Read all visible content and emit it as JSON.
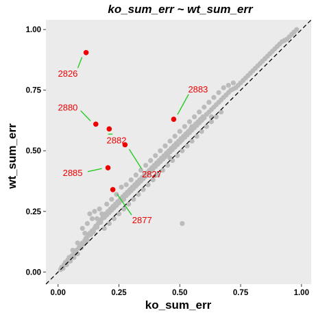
{
  "chart_data": {
    "type": "scatter",
    "title": "ko_sum_err ~ wt_sum_err",
    "xlabel": "ko_sum_err",
    "ylabel": "wt_sum_err",
    "xlim": [
      -0.05,
      1.04
    ],
    "ylim": [
      -0.05,
      1.04
    ],
    "xticks": [
      0.0,
      0.25,
      0.5,
      0.75,
      1.0
    ],
    "yticks": [
      0.0,
      0.25,
      0.5,
      0.75,
      1.0
    ],
    "xtick_labels": [
      "0.00",
      "0.25",
      "0.50",
      "0.75",
      "1.00"
    ],
    "ytick_labels": [
      "0.00",
      "0.25",
      "0.50",
      "0.75",
      "1.00"
    ],
    "reference_line": {
      "slope": 1,
      "intercept": 0,
      "style": "dashed",
      "color": "#000000"
    },
    "grid": false,
    "legend": "none",
    "colors": {
      "background": "#ffffff",
      "panel": "#ebebeb",
      "bulk_points": "#bbbbbb",
      "highlight_points": "#ee0000",
      "annotation_text": "#ee0000",
      "leader_lines": "#22cc22"
    },
    "bulk_series": {
      "points": [
        [
          0.01,
          0.01
        ],
        [
          0.015,
          0.02
        ],
        [
          0.02,
          0.015
        ],
        [
          0.025,
          0.03
        ],
        [
          0.03,
          0.04
        ],
        [
          0.035,
          0.03
        ],
        [
          0.04,
          0.05
        ],
        [
          0.045,
          0.06
        ],
        [
          0.05,
          0.045
        ],
        [
          0.055,
          0.065
        ],
        [
          0.06,
          0.07
        ],
        [
          0.065,
          0.06
        ],
        [
          0.07,
          0.08
        ],
        [
          0.075,
          0.09
        ],
        [
          0.08,
          0.075
        ],
        [
          0.085,
          0.1
        ],
        [
          0.09,
          0.11
        ],
        [
          0.095,
          0.1
        ],
        [
          0.1,
          0.12
        ],
        [
          0.105,
          0.115
        ],
        [
          0.11,
          0.13
        ],
        [
          0.115,
          0.14
        ],
        [
          0.12,
          0.13
        ],
        [
          0.125,
          0.15
        ],
        [
          0.13,
          0.16
        ],
        [
          0.135,
          0.155
        ],
        [
          0.14,
          0.17
        ],
        [
          0.145,
          0.165
        ],
        [
          0.15,
          0.18
        ],
        [
          0.155,
          0.19
        ],
        [
          0.16,
          0.185
        ],
        [
          0.165,
          0.2
        ],
        [
          0.17,
          0.21
        ],
        [
          0.175,
          0.205
        ],
        [
          0.18,
          0.22
        ],
        [
          0.185,
          0.23
        ],
        [
          0.19,
          0.225
        ],
        [
          0.195,
          0.24
        ],
        [
          0.2,
          0.235
        ],
        [
          0.205,
          0.25
        ],
        [
          0.21,
          0.245
        ],
        [
          0.215,
          0.26
        ],
        [
          0.22,
          0.255
        ],
        [
          0.225,
          0.27
        ],
        [
          0.23,
          0.265
        ],
        [
          0.235,
          0.28
        ],
        [
          0.24,
          0.275
        ],
        [
          0.245,
          0.29
        ],
        [
          0.25,
          0.285
        ],
        [
          0.255,
          0.3
        ],
        [
          0.26,
          0.295
        ],
        [
          0.265,
          0.31
        ],
        [
          0.27,
          0.3
        ],
        [
          0.275,
          0.32
        ],
        [
          0.28,
          0.315
        ],
        [
          0.285,
          0.33
        ],
        [
          0.29,
          0.325
        ],
        [
          0.295,
          0.34
        ],
        [
          0.3,
          0.335
        ],
        [
          0.305,
          0.35
        ],
        [
          0.31,
          0.345
        ],
        [
          0.315,
          0.36
        ],
        [
          0.32,
          0.355
        ],
        [
          0.325,
          0.37
        ],
        [
          0.33,
          0.365
        ],
        [
          0.335,
          0.38
        ],
        [
          0.34,
          0.375
        ],
        [
          0.345,
          0.39
        ],
        [
          0.35,
          0.385
        ],
        [
          0.355,
          0.4
        ],
        [
          0.36,
          0.395
        ],
        [
          0.365,
          0.41
        ],
        [
          0.37,
          0.405
        ],
        [
          0.375,
          0.42
        ],
        [
          0.38,
          0.415
        ],
        [
          0.385,
          0.43
        ],
        [
          0.39,
          0.425
        ],
        [
          0.395,
          0.44
        ],
        [
          0.4,
          0.435
        ],
        [
          0.405,
          0.45
        ],
        [
          0.41,
          0.445
        ],
        [
          0.415,
          0.46
        ],
        [
          0.42,
          0.455
        ],
        [
          0.425,
          0.47
        ],
        [
          0.43,
          0.465
        ],
        [
          0.435,
          0.48
        ],
        [
          0.44,
          0.475
        ],
        [
          0.445,
          0.49
        ],
        [
          0.45,
          0.485
        ],
        [
          0.455,
          0.5
        ],
        [
          0.46,
          0.495
        ],
        [
          0.465,
          0.51
        ],
        [
          0.47,
          0.505
        ],
        [
          0.475,
          0.52
        ],
        [
          0.48,
          0.515
        ],
        [
          0.485,
          0.53
        ],
        [
          0.49,
          0.525
        ],
        [
          0.495,
          0.54
        ],
        [
          0.5,
          0.535
        ],
        [
          0.505,
          0.55
        ],
        [
          0.51,
          0.545
        ],
        [
          0.515,
          0.56
        ],
        [
          0.52,
          0.555
        ],
        [
          0.525,
          0.57
        ],
        [
          0.53,
          0.565
        ],
        [
          0.535,
          0.58
        ],
        [
          0.54,
          0.575
        ],
        [
          0.545,
          0.59
        ],
        [
          0.55,
          0.585
        ],
        [
          0.555,
          0.6
        ],
        [
          0.56,
          0.595
        ],
        [
          0.565,
          0.61
        ],
        [
          0.57,
          0.605
        ],
        [
          0.575,
          0.62
        ],
        [
          0.58,
          0.615
        ],
        [
          0.585,
          0.63
        ],
        [
          0.59,
          0.625
        ],
        [
          0.595,
          0.64
        ],
        [
          0.6,
          0.635
        ],
        [
          0.61,
          0.65
        ],
        [
          0.62,
          0.66
        ],
        [
          0.63,
          0.67
        ],
        [
          0.64,
          0.68
        ],
        [
          0.65,
          0.69
        ],
        [
          0.66,
          0.7
        ],
        [
          0.67,
          0.71
        ],
        [
          0.68,
          0.72
        ],
        [
          0.69,
          0.73
        ],
        [
          0.7,
          0.74
        ],
        [
          0.71,
          0.75
        ],
        [
          0.72,
          0.755
        ],
        [
          0.73,
          0.76
        ],
        [
          0.74,
          0.77
        ],
        [
          0.75,
          0.78
        ],
        [
          0.76,
          0.79
        ],
        [
          0.77,
          0.8
        ],
        [
          0.78,
          0.81
        ],
        [
          0.79,
          0.82
        ],
        [
          0.8,
          0.83
        ],
        [
          0.81,
          0.84
        ],
        [
          0.82,
          0.85
        ],
        [
          0.83,
          0.86
        ],
        [
          0.84,
          0.87
        ],
        [
          0.85,
          0.88
        ],
        [
          0.86,
          0.89
        ],
        [
          0.87,
          0.9
        ],
        [
          0.88,
          0.91
        ],
        [
          0.89,
          0.92
        ],
        [
          0.9,
          0.93
        ],
        [
          0.91,
          0.94
        ],
        [
          0.92,
          0.95
        ],
        [
          0.93,
          0.955
        ],
        [
          0.94,
          0.96
        ],
        [
          0.95,
          0.97
        ],
        [
          0.96,
          0.98
        ],
        [
          0.97,
          0.99
        ],
        [
          0.98,
          1.0
        ],
        [
          0.13,
          0.24
        ],
        [
          0.14,
          0.22
        ],
        [
          0.12,
          0.2
        ],
        [
          0.1,
          0.18
        ],
        [
          0.11,
          0.16
        ],
        [
          0.08,
          0.12
        ],
        [
          0.06,
          0.09
        ],
        [
          0.15,
          0.25
        ],
        [
          0.17,
          0.26
        ],
        [
          0.18,
          0.24
        ],
        [
          0.16,
          0.22
        ],
        [
          0.2,
          0.28
        ],
        [
          0.22,
          0.3
        ],
        [
          0.24,
          0.32
        ],
        [
          0.26,
          0.35
        ],
        [
          0.28,
          0.36
        ],
        [
          0.3,
          0.38
        ],
        [
          0.32,
          0.4
        ],
        [
          0.34,
          0.42
        ],
        [
          0.36,
          0.44
        ],
        [
          0.38,
          0.46
        ],
        [
          0.4,
          0.48
        ],
        [
          0.42,
          0.5
        ],
        [
          0.44,
          0.52
        ],
        [
          0.46,
          0.54
        ],
        [
          0.48,
          0.56
        ],
        [
          0.5,
          0.58
        ],
        [
          0.52,
          0.6
        ],
        [
          0.54,
          0.62
        ],
        [
          0.56,
          0.64
        ],
        [
          0.58,
          0.66
        ],
        [
          0.6,
          0.68
        ],
        [
          0.62,
          0.7
        ],
        [
          0.64,
          0.72
        ],
        [
          0.66,
          0.74
        ],
        [
          0.68,
          0.76
        ],
        [
          0.7,
          0.77
        ],
        [
          0.72,
          0.78
        ],
        [
          0.19,
          0.18
        ],
        [
          0.21,
          0.2
        ],
        [
          0.23,
          0.22
        ],
        [
          0.25,
          0.24
        ],
        [
          0.27,
          0.26
        ],
        [
          0.29,
          0.28
        ],
        [
          0.31,
          0.3
        ],
        [
          0.33,
          0.32
        ],
        [
          0.35,
          0.34
        ],
        [
          0.37,
          0.36
        ],
        [
          0.39,
          0.38
        ],
        [
          0.41,
          0.4
        ],
        [
          0.43,
          0.42
        ],
        [
          0.45,
          0.44
        ],
        [
          0.47,
          0.46
        ],
        [
          0.49,
          0.48
        ],
        [
          0.51,
          0.5
        ],
        [
          0.53,
          0.52
        ],
        [
          0.55,
          0.54
        ],
        [
          0.57,
          0.56
        ],
        [
          0.59,
          0.58
        ],
        [
          0.61,
          0.6
        ],
        [
          0.63,
          0.62
        ],
        [
          0.65,
          0.64
        ],
        [
          0.67,
          0.66
        ],
        [
          0.51,
          0.2
        ],
        [
          0.46,
          0.47
        ],
        [
          0.55,
          0.6
        ],
        [
          0.63,
          0.64
        ]
      ]
    },
    "highlighted": [
      {
        "label": "2826",
        "x": 0.115,
        "y": 0.905,
        "label_x": 0.04,
        "label_y": 0.82
      },
      {
        "label": "2880",
        "x": 0.155,
        "y": 0.61,
        "label_x": 0.04,
        "label_y": 0.68
      },
      {
        "label": "2882",
        "x": 0.21,
        "y": 0.59,
        "label_x": 0.24,
        "label_y": 0.545
      },
      {
        "label": "2883",
        "x": 0.475,
        "y": 0.63,
        "label_x": 0.575,
        "label_y": 0.755
      },
      {
        "label": "2827",
        "x": 0.275,
        "y": 0.525,
        "label_x": 0.385,
        "label_y": 0.405
      },
      {
        "label": "2885",
        "x": 0.205,
        "y": 0.43,
        "label_x": 0.06,
        "label_y": 0.41
      },
      {
        "label": "2877",
        "x": 0.225,
        "y": 0.34,
        "label_x": 0.345,
        "label_y": 0.215
      }
    ]
  }
}
